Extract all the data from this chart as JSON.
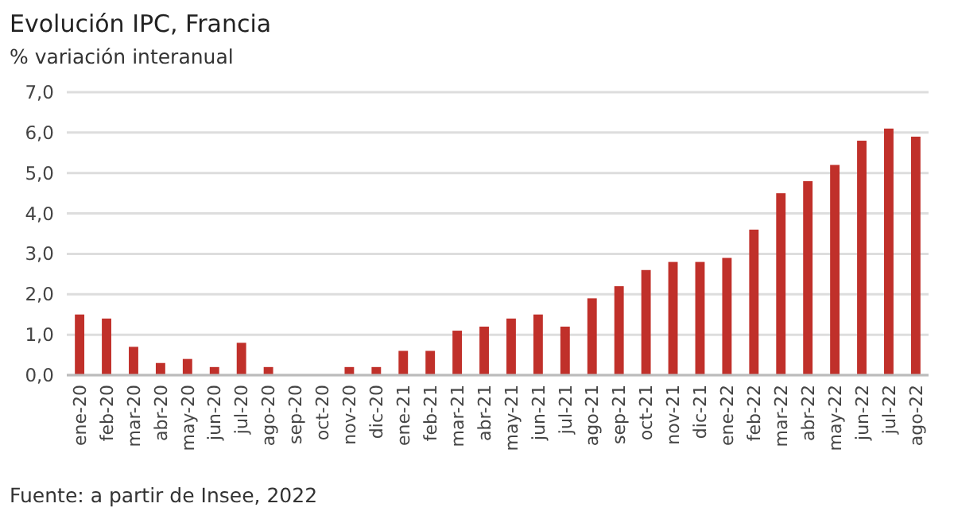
{
  "chart_data": {
    "type": "bar",
    "title": "Evolución IPC, Francia",
    "subtitle": "% variación interanual",
    "categories": [
      "ene-20",
      "feb-20",
      "mar-20",
      "abr-20",
      "may-20",
      "jun-20",
      "jul-20",
      "ago-20",
      "sep-20",
      "oct-20",
      "nov-20",
      "dic-20",
      "ene-21",
      "feb-21",
      "mar-21",
      "abr-21",
      "may-21",
      "jun-21",
      "jul-21",
      "ago-21",
      "sep-21",
      "oct-21",
      "nov-21",
      "dic-21",
      "ene-22",
      "feb-22",
      "mar-22",
      "abr-22",
      "may-22",
      "jun-22",
      "jul-22",
      "ago-22"
    ],
    "values": [
      1.5,
      1.4,
      0.7,
      0.3,
      0.4,
      0.2,
      0.8,
      0.2,
      0,
      0,
      0.2,
      0.2,
      0.6,
      0.6,
      1.1,
      1.2,
      1.4,
      1.5,
      1.2,
      1.9,
      2.2,
      2.6,
      2.8,
      2.8,
      2.9,
      3.6,
      4.5,
      4.8,
      5.2,
      5.8,
      6.1,
      5.9
    ],
    "color": "#c0302a",
    "ylim": [
      0,
      7
    ],
    "yticks": [
      {
        "value": 0,
        "label": "0,0"
      },
      {
        "value": 1,
        "label": "1,0"
      },
      {
        "value": 2,
        "label": "2,0"
      },
      {
        "value": 3,
        "label": "3,0"
      },
      {
        "value": 4,
        "label": "4,0"
      },
      {
        "value": 5,
        "label": "5,0"
      },
      {
        "value": 6,
        "label": "6,0"
      },
      {
        "value": 7,
        "label": "7,0"
      }
    ],
    "grid": "y",
    "annotations": [
      "Fuente: a partir de Insee, 2022"
    ]
  }
}
